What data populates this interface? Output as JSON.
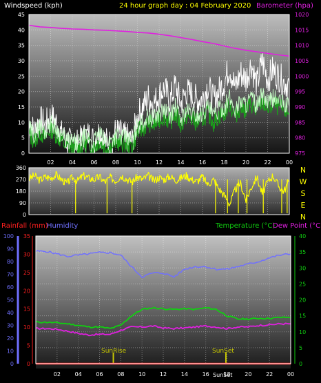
{
  "colors": {
    "background": "#000000",
    "plot_top": "#b8b8b8",
    "plot_bottom": "#1c1c1c",
    "wind_avg": "#ffffff",
    "wind_gust": "#c8ffc8",
    "wind_mid": "#1aa01a",
    "barometer": "#e020e0",
    "direction": "#ffff00",
    "rain": "#ff2020",
    "humidity": "#7070ff",
    "temperature": "#10d010",
    "dewpoint": "#e020e0",
    "sun": "#c8c800",
    "axis_text": "#ffffff"
  },
  "titles": {
    "windspeed": "Windspeed (kph)",
    "graph_day": "24 hour graph day : 04 February 2020",
    "barometer": "Barometer (hpa)",
    "rainfall": "Rainfall (mm)",
    "humidity": "Humidity",
    "temperature": "Temperature (°C)",
    "dewpoint": "Dew Point (°C)",
    "sunrise": "SunRise",
    "sunset": "SunSet",
    "sunset_bottom": "SunSet"
  },
  "compass": [
    "N",
    "W",
    "S",
    "E",
    "N"
  ],
  "chart_data": [
    {
      "type": "line",
      "name": "wind-barometer",
      "x_ticks": [
        "02",
        "04",
        "06",
        "08",
        "10",
        "12",
        "14",
        "16",
        "18",
        "20",
        "22",
        "00"
      ],
      "xlim": [
        0,
        24
      ],
      "ylim": [
        0,
        45
      ],
      "y_ticks": [
        0,
        5,
        10,
        15,
        20,
        25,
        30,
        35,
        40,
        45
      ],
      "y2lim": [
        975,
        1020
      ],
      "y2_ticks": [
        975,
        980,
        985,
        990,
        995,
        1000,
        1005,
        1010,
        1015,
        1020
      ],
      "grid": true,
      "series": [
        {
          "name": "Windspeed",
          "axis": "left",
          "x": [
            0,
            0.5,
            1,
            1.5,
            2,
            2.5,
            3,
            3.5,
            4,
            4.5,
            5,
            5.5,
            6,
            6.5,
            7,
            7.5,
            8,
            8.5,
            9,
            9.5,
            10,
            10.5,
            11,
            11.5,
            12,
            12.5,
            13,
            13.5,
            14,
            14.5,
            15,
            15.5,
            16,
            16.5,
            17,
            17.5,
            18,
            18.5,
            19,
            19.5,
            20,
            20.5,
            21,
            21.5,
            22,
            22.5,
            23,
            23.5,
            24
          ],
          "values": [
            10,
            7,
            11,
            9,
            12,
            10,
            6,
            4,
            3,
            3,
            5,
            6,
            4,
            7,
            4,
            3,
            7,
            6,
            5,
            4,
            12,
            15,
            18,
            16,
            19,
            21,
            17,
            22,
            16,
            20,
            19,
            17,
            18,
            22,
            17,
            20,
            23,
            28,
            21,
            26,
            24,
            29,
            22,
            30,
            24,
            27,
            25,
            23,
            22
          ]
        },
        {
          "name": "Gust",
          "axis": "left",
          "x": [
            0,
            0.5,
            1,
            1.5,
            2,
            2.5,
            3,
            3.5,
            4,
            4.5,
            5,
            5.5,
            6,
            6.5,
            7,
            7.5,
            8,
            8.5,
            9,
            9.5,
            10,
            10.5,
            11,
            11.5,
            12,
            12.5,
            13,
            13.5,
            14,
            14.5,
            15,
            15.5,
            16,
            16.5,
            17,
            17.5,
            18,
            18.5,
            19,
            19.5,
            20,
            20.5,
            21,
            21.5,
            22,
            22.5,
            23,
            23.5,
            24
          ],
          "values": [
            6,
            4,
            7,
            5,
            8,
            6,
            4,
            2,
            2,
            1,
            3,
            3,
            2,
            4,
            2,
            2,
            4,
            3,
            3,
            2,
            7,
            8,
            10,
            9,
            11,
            12,
            10,
            13,
            9,
            12,
            11,
            10,
            11,
            13,
            10,
            12,
            13,
            16,
            12,
            15,
            14,
            16,
            13,
            17,
            14,
            16,
            15,
            14,
            13
          ]
        },
        {
          "name": "Barometer",
          "axis": "right",
          "x": [
            0,
            1,
            2,
            3,
            4,
            5,
            6,
            7,
            8,
            9,
            10,
            11,
            12,
            13,
            14,
            15,
            16,
            17,
            18,
            19,
            20,
            21,
            22,
            23,
            24
          ],
          "values": [
            1016.5,
            1016,
            1015.8,
            1015.5,
            1015.3,
            1015.2,
            1015,
            1014.9,
            1014.7,
            1014.5,
            1014.2,
            1014,
            1013.6,
            1013.1,
            1012.5,
            1011.9,
            1011.2,
            1010.6,
            1009.8,
            1009,
            1008.4,
            1007.9,
            1007.4,
            1006.9,
            1006.5
          ]
        }
      ]
    },
    {
      "type": "line",
      "name": "wind-direction",
      "x_ticks": [
        "02",
        "04",
        "06",
        "08",
        "10",
        "12",
        "14",
        "16",
        "18",
        "20",
        "22",
        "00"
      ],
      "xlim": [
        0,
        24
      ],
      "ylim": [
        0,
        360
      ],
      "y_ticks": [
        0,
        90,
        180,
        270,
        360
      ],
      "grid": true,
      "series": [
        {
          "name": "Wind direction",
          "x": [
            0,
            0.5,
            1,
            1.5,
            2,
            2.5,
            3,
            3.5,
            4,
            4.5,
            5,
            5.5,
            6,
            6.5,
            7,
            7.5,
            8,
            8.5,
            9,
            9.5,
            10,
            10.5,
            11,
            11.5,
            12,
            12.5,
            13,
            13.5,
            14,
            14.5,
            15,
            15.5,
            16,
            16.5,
            17,
            17.5,
            18,
            18.5,
            19,
            19.5,
            20,
            20.5,
            21,
            21.5,
            22,
            22.5,
            23,
            23.5,
            24
          ],
          "values": [
            275,
            300,
            265,
            290,
            280,
            305,
            270,
            240,
            285,
            260,
            300,
            280,
            270,
            290,
            250,
            285,
            260,
            300,
            275,
            250,
            290,
            270,
            300,
            260,
            285,
            270,
            295,
            265,
            280,
            300,
            270,
            255,
            290,
            230,
            270,
            200,
            150,
            80,
            190,
            240,
            110,
            210,
            290,
            160,
            250,
            300,
            220,
            180,
            260
          ]
        }
      ]
    },
    {
      "type": "line",
      "name": "rain-humidity-temp",
      "x_ticks": [
        "02",
        "04",
        "06",
        "08",
        "10",
        "12",
        "14",
        "16",
        "18",
        "20",
        "22",
        "00"
      ],
      "xlim": [
        0,
        24
      ],
      "ylim": [
        0,
        35
      ],
      "y_ticks": [
        0,
        5,
        10,
        15,
        20,
        25,
        30,
        35
      ],
      "y_left2lim": [
        0,
        100
      ],
      "y_left2_ticks": [
        0,
        10,
        20,
        30,
        40,
        50,
        60,
        70,
        80,
        90,
        100
      ],
      "y2lim": [
        0,
        40
      ],
      "y2_ticks": [
        0,
        5,
        10,
        15,
        20,
        25,
        30,
        35,
        40
      ],
      "grid": true,
      "series": [
        {
          "name": "Rainfall",
          "axis": "left",
          "x": [
            0,
            24
          ],
          "values": [
            0,
            0
          ]
        },
        {
          "name": "Humidity",
          "axis": "left2",
          "x": [
            0,
            1,
            2,
            3,
            4,
            5,
            6,
            7,
            8,
            9,
            10,
            11,
            12,
            13,
            14,
            15,
            16,
            17,
            18,
            19,
            20,
            21,
            22,
            23,
            24
          ],
          "values": [
            88,
            88,
            86,
            84,
            85,
            86,
            87,
            87,
            85,
            76,
            68,
            71,
            71,
            68,
            74,
            76,
            76,
            74,
            74,
            76,
            78,
            80,
            83,
            85,
            86
          ]
        },
        {
          "name": "Temperature",
          "axis": "right",
          "x": [
            0,
            1,
            2,
            3,
            4,
            5,
            6,
            7,
            8,
            9,
            10,
            11,
            12,
            13,
            14,
            15,
            16,
            17,
            18,
            19,
            20,
            21,
            22,
            23,
            24
          ],
          "values": [
            13,
            13,
            12.8,
            12.5,
            12,
            11.5,
            11.5,
            11,
            12,
            15,
            17,
            17.5,
            17.2,
            17,
            17.2,
            17,
            17.5,
            17,
            15,
            14,
            14,
            14.2,
            14.2,
            14.5,
            14.5
          ]
        },
        {
          "name": "Dew Point",
          "axis": "right",
          "x": [
            0,
            1,
            2,
            3,
            4,
            5,
            6,
            7,
            8,
            9,
            10,
            11,
            12,
            13,
            14,
            15,
            16,
            17,
            18,
            19,
            20,
            21,
            22,
            23,
            24
          ],
          "values": [
            11,
            11,
            10.8,
            10.2,
            9.5,
            9,
            9.2,
            9.2,
            10.5,
            11.5,
            11.5,
            11.8,
            11.2,
            11,
            11.2,
            11.5,
            11.8,
            11.5,
            11,
            11.5,
            11.5,
            12,
            12.2,
            12.5,
            12.5
          ]
        }
      ],
      "sunrise_hour": 7.3,
      "sunset_hour": 17.9
    }
  ]
}
